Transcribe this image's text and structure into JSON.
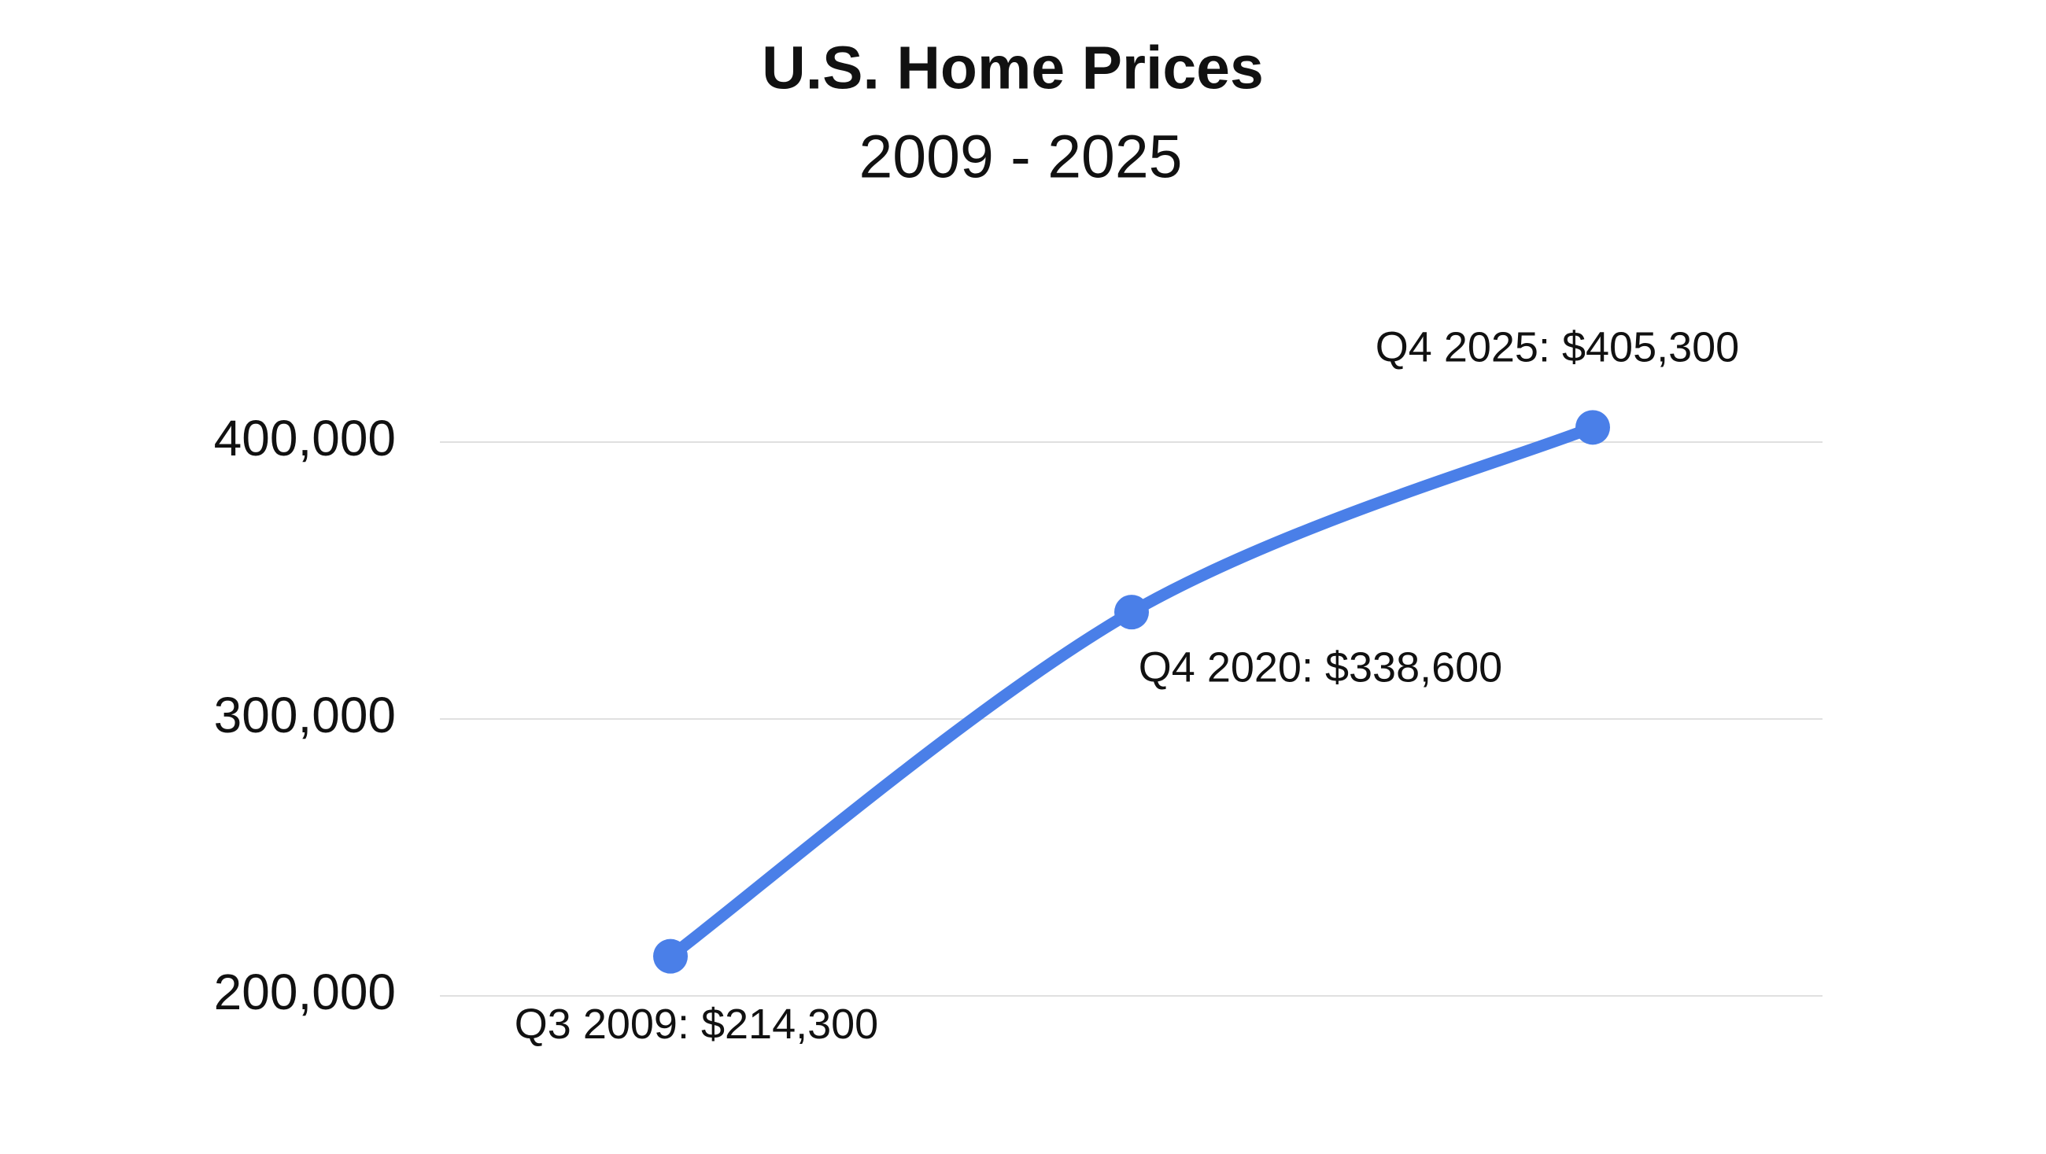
{
  "chart_data": {
    "type": "line",
    "title": "U.S. Home Prices",
    "subtitle": "2009 - 2025",
    "categories": [
      null,
      null,
      null
    ],
    "values": [
      214300,
      338600,
      405300
    ],
    "value_labels": [
      "Q3 2009: $214,300",
      "Q4 2020: $338,600",
      "Q4 2025: $405,300"
    ],
    "color": "#4a7fe8",
    "ylim": [
      200000,
      400000
    ],
    "yticks": [
      {
        "value": 200000,
        "label": "200,000"
      },
      {
        "value": 300000,
        "label": "300,000"
      },
      {
        "value": 400000,
        "label": "400,000"
      }
    ],
    "grid": true
  }
}
